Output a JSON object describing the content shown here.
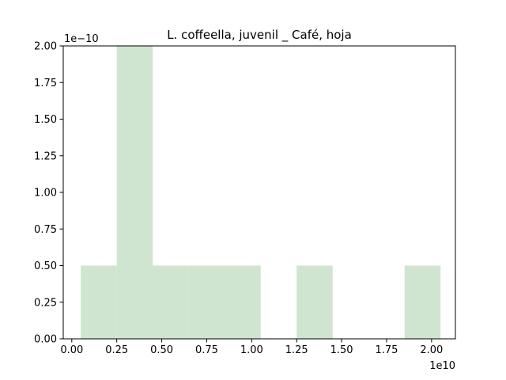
{
  "chart_data": {
    "type": "bar",
    "subtype": "histogram",
    "title": "L. coffeella, juvenil _ Café, hoja",
    "xlabel": "",
    "ylabel": "",
    "x_scale_label": "1e10",
    "y_scale_label": "1e−10",
    "xlim": [
      -0.0475,
      2.1325
    ],
    "ylim": [
      0,
      2.0
    ],
    "x_ticks": [
      0.0,
      0.25,
      0.5,
      0.75,
      1.0,
      1.25,
      1.5,
      1.75,
      2.0
    ],
    "x_tick_labels": [
      "0.00",
      "0.25",
      "0.50",
      "0.75",
      "1.00",
      "1.25",
      "1.50",
      "1.75",
      "2.00"
    ],
    "y_ticks": [
      0.0,
      0.25,
      0.5,
      0.75,
      1.0,
      1.25,
      1.5,
      1.75,
      2.0
    ],
    "y_tick_labels": [
      "0.00",
      "0.25",
      "0.50",
      "0.75",
      "1.00",
      "1.25",
      "1.50",
      "1.75",
      "2.00"
    ],
    "bins": [
      {
        "x0": 0.05,
        "x1": 0.25,
        "value": 0.5
      },
      {
        "x0": 0.25,
        "x1": 0.45,
        "value": 2.0
      },
      {
        "x0": 0.45,
        "x1": 0.65,
        "value": 0.5
      },
      {
        "x0": 0.65,
        "x1": 0.85,
        "value": 0.5
      },
      {
        "x0": 0.85,
        "x1": 1.05,
        "value": 0.5
      },
      {
        "x0": 1.05,
        "x1": 1.25,
        "value": 0.0
      },
      {
        "x0": 1.25,
        "x1": 1.45,
        "value": 0.5
      },
      {
        "x0": 1.45,
        "x1": 1.65,
        "value": 0.0
      },
      {
        "x0": 1.65,
        "x1": 1.85,
        "value": 0.0
      },
      {
        "x0": 1.85,
        "x1": 2.05,
        "value": 0.5
      }
    ],
    "bar_color": "#cfe5cf",
    "grid": false,
    "legend": null
  }
}
